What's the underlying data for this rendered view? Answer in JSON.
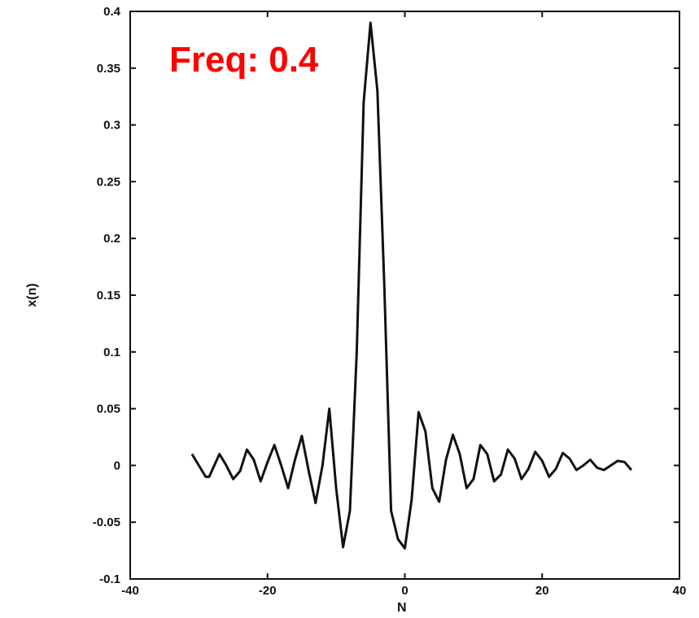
{
  "chart_data": {
    "type": "line",
    "title": "",
    "annotation": "Freq: 0.4",
    "xlabel": "N",
    "ylabel": "x(n)",
    "xlim": [
      -40,
      40
    ],
    "ylim": [
      -0.1,
      0.4
    ],
    "xticks": [
      -40,
      -20,
      0,
      20,
      40
    ],
    "xtick_labels": [
      "-40",
      "-20",
      "0",
      "20",
      "40"
    ],
    "yticks": [
      -0.1,
      -0.05,
      0,
      0.05,
      0.1,
      0.15,
      0.2,
      0.25,
      0.3,
      0.35,
      0.4
    ],
    "ytick_labels": [
      "-0.1",
      "-0.05",
      "0",
      "0.05",
      "0.1",
      "0.15",
      "0.2",
      "0.25",
      "0.3",
      "0.35",
      "0.4"
    ],
    "grid": false,
    "colors": {
      "line": "#111111",
      "annotation": "#ff0000",
      "axes": "#111111"
    },
    "series": [
      {
        "x": [
          -31,
          -29,
          -28.5,
          -27,
          -26,
          -25,
          -24,
          -23,
          -22,
          -21,
          -20,
          -19,
          -18,
          -17,
          -16,
          -15,
          -14,
          -13,
          -12,
          -11,
          -10,
          -9,
          -8,
          -7,
          -6,
          -5,
          -4,
          -3,
          -2,
          -1,
          0,
          1,
          2,
          3,
          4,
          5,
          6,
          7,
          8,
          9,
          10,
          11,
          12,
          13,
          14,
          15,
          16,
          17,
          18,
          19,
          20,
          21,
          22,
          23,
          24,
          25,
          26,
          27,
          28,
          29,
          30,
          31,
          32,
          33
        ],
        "y": [
          0.01,
          -0.01,
          -0.01,
          0.01,
          0.0,
          -0.012,
          -0.005,
          0.014,
          0.005,
          -0.014,
          0.003,
          0.018,
          0.0,
          -0.02,
          0.005,
          0.026,
          -0.005,
          -0.033,
          0.0,
          0.05,
          -0.02,
          -0.072,
          -0.04,
          0.1,
          0.32,
          0.39,
          0.33,
          0.16,
          -0.04,
          -0.065,
          -0.073,
          -0.03,
          0.047,
          0.03,
          -0.02,
          -0.032,
          0.005,
          0.027,
          0.01,
          -0.02,
          -0.012,
          0.018,
          0.01,
          -0.014,
          -0.008,
          0.014,
          0.006,
          -0.012,
          -0.003,
          0.012,
          0.004,
          -0.01,
          -0.003,
          0.011,
          0.006,
          -0.004,
          0.0,
          0.005,
          -0.002,
          -0.004,
          0.0,
          0.004,
          0.003,
          -0.004
        ]
      }
    ]
  }
}
